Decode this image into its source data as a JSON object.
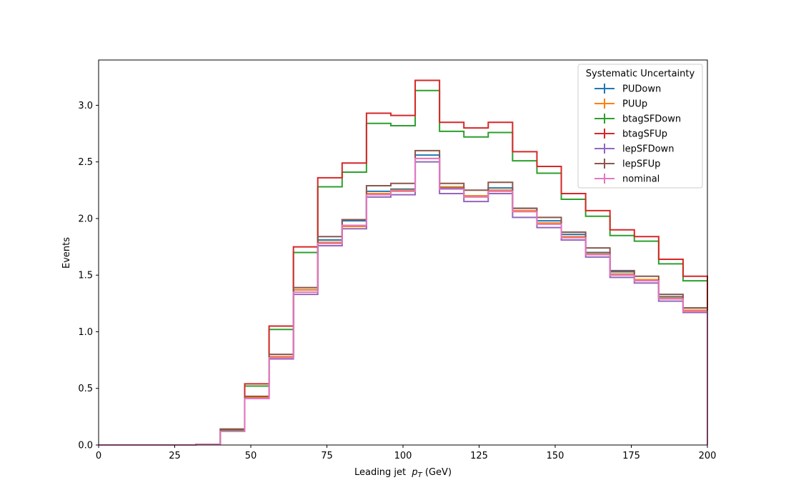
{
  "chart_data": {
    "type": "step-histogram",
    "xlabel": "Leading jet  p_T (GeV)",
    "xlabel_parts": {
      "prefix": "Leading jet  ",
      "var": "p",
      "sub": "T",
      "suffix": " (GeV)"
    },
    "ylabel": "Events",
    "xlim": [
      0,
      200
    ],
    "ylim": [
      0,
      3.4
    ],
    "x_ticks": [
      0,
      25,
      50,
      75,
      100,
      125,
      150,
      175,
      200
    ],
    "y_ticks": [
      0.0,
      0.5,
      1.0,
      1.5,
      2.0,
      2.5,
      3.0
    ],
    "y_tick_labels": [
      "0.0",
      "0.5",
      "1.0",
      "1.5",
      "2.0",
      "2.5",
      "3.0"
    ],
    "bin_edges": [
      0,
      8,
      16,
      24,
      32,
      40,
      48,
      56,
      64,
      72,
      80,
      88,
      96,
      104,
      112,
      120,
      128,
      136,
      144,
      152,
      160,
      168,
      176,
      184,
      192,
      200
    ],
    "legend": {
      "title": "Systematic Uncertainty",
      "position": "upper right"
    },
    "series": [
      {
        "name": "PUDown",
        "color": "#1f77b4",
        "values": [
          0,
          0,
          0,
          0,
          0.005,
          0.13,
          0.42,
          0.78,
          1.37,
          1.81,
          1.98,
          2.24,
          2.26,
          2.56,
          2.27,
          2.2,
          2.27,
          2.09,
          1.98,
          1.86,
          1.7,
          1.53,
          1.46,
          1.31,
          1.21
        ]
      },
      {
        "name": "PUUp",
        "color": "#ff7f0e",
        "values": [
          0,
          0,
          0,
          0,
          0.005,
          0.13,
          0.42,
          0.78,
          1.37,
          1.79,
          1.93,
          2.22,
          2.25,
          2.53,
          2.28,
          2.2,
          2.25,
          2.07,
          1.96,
          1.84,
          1.69,
          1.51,
          1.46,
          1.3,
          1.19
        ]
      },
      {
        "name": "btagSFDown",
        "color": "#2ca02c",
        "values": [
          0,
          0,
          0,
          0,
          0.005,
          0.13,
          0.52,
          1.02,
          1.7,
          2.28,
          2.41,
          2.84,
          2.82,
          3.13,
          2.77,
          2.72,
          2.76,
          2.51,
          2.4,
          2.17,
          2.02,
          1.85,
          1.8,
          1.6,
          1.45
        ]
      },
      {
        "name": "btagSFUp",
        "color": "#d62728",
        "values": [
          0,
          0,
          0,
          0,
          0.005,
          0.14,
          0.54,
          1.05,
          1.75,
          2.36,
          2.49,
          2.93,
          2.91,
          3.22,
          2.85,
          2.8,
          2.85,
          2.59,
          2.46,
          2.22,
          2.07,
          1.9,
          1.84,
          1.64,
          1.49
        ]
      },
      {
        "name": "lepSFDown",
        "color": "#9467bd",
        "values": [
          0,
          0,
          0,
          0,
          0.005,
          0.12,
          0.41,
          0.76,
          1.33,
          1.76,
          1.91,
          2.19,
          2.21,
          2.5,
          2.22,
          2.15,
          2.22,
          2.01,
          1.92,
          1.81,
          1.66,
          1.48,
          1.43,
          1.27,
          1.17
        ]
      },
      {
        "name": "lepSFUp",
        "color": "#8c564b",
        "values": [
          0,
          0,
          0,
          0,
          0.005,
          0.14,
          0.43,
          0.8,
          1.39,
          1.84,
          1.99,
          2.29,
          2.31,
          2.6,
          2.31,
          2.25,
          2.32,
          2.09,
          2.01,
          1.88,
          1.74,
          1.54,
          1.49,
          1.33,
          1.21
        ]
      },
      {
        "name": "nominal",
        "color": "#e377c2",
        "values": [
          0,
          0,
          0,
          0,
          0.005,
          0.12,
          0.41,
          0.77,
          1.35,
          1.78,
          1.94,
          2.21,
          2.24,
          2.53,
          2.26,
          2.19,
          2.24,
          2.06,
          1.95,
          1.83,
          1.68,
          1.5,
          1.45,
          1.29,
          1.18
        ]
      }
    ]
  }
}
